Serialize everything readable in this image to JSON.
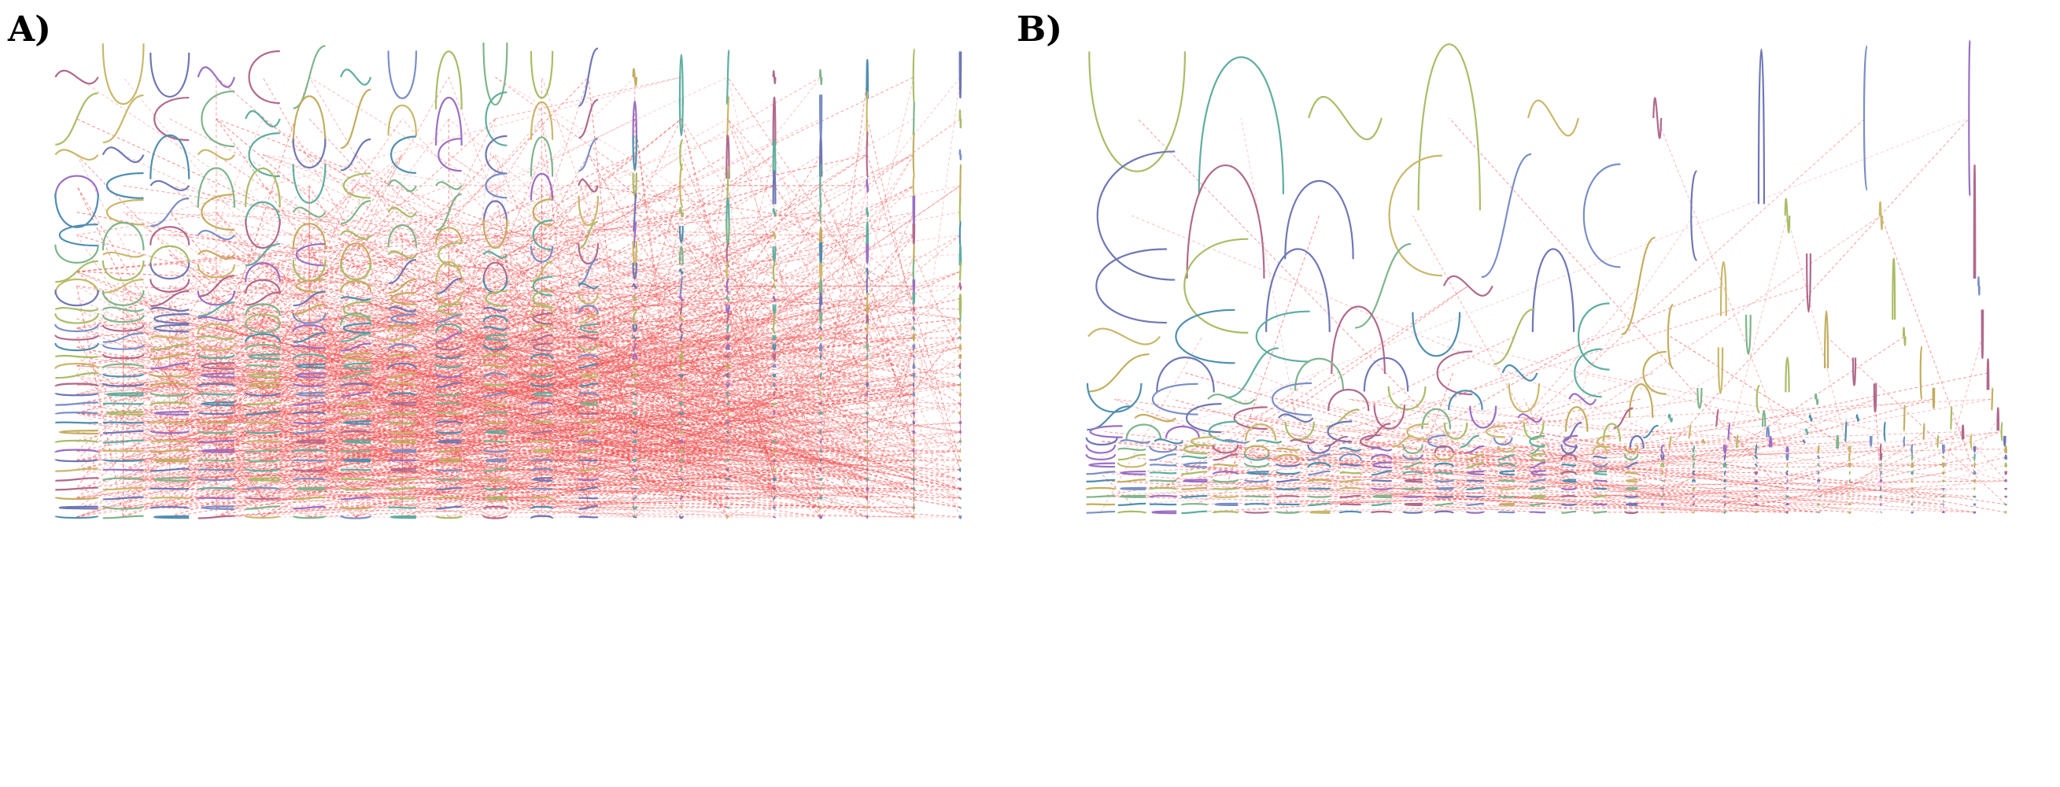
{
  "figure": {
    "panels": [
      {
        "id": "A",
        "label": "A)",
        "rows": 33,
        "cols": 20,
        "connectors": 1400
      },
      {
        "id": "B",
        "label": "B)",
        "rows": 18,
        "cols": 14,
        "connectors": 220
      }
    ],
    "colors": {
      "connector": "#f05050",
      "curves": [
        "#6f77b5",
        "#a9bd67",
        "#c3ad5e",
        "#5fae9f",
        "#7fb58c",
        "#9b6fc4",
        "#b06a8c",
        "#7a8fc7",
        "#c9b86b",
        "#4f8fb0"
      ]
    }
  }
}
